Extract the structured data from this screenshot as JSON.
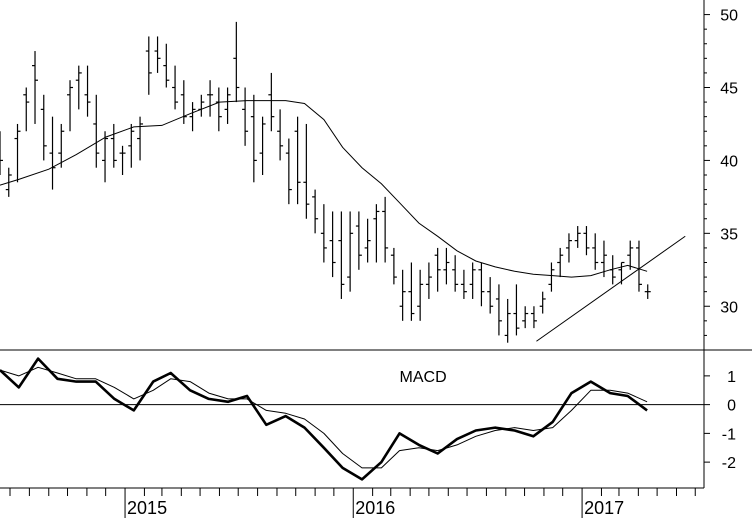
{
  "chart_data": [
    {
      "type": "ohlc",
      "panel": "price",
      "ylim": [
        27,
        51
      ],
      "y_ticks": [
        30,
        35,
        40,
        45,
        50
      ],
      "x_tick_labels": [
        "2015",
        "2016",
        "2017"
      ],
      "x_tick_dates": [
        "2015-01-01",
        "2016-01-01",
        "2017-01-01"
      ],
      "x_range": [
        "2014-06-15",
        "2017-07-15"
      ],
      "moving_average": {
        "x": [
          "2014-06-15",
          "2014-07-15",
          "2014-09-01",
          "2014-10-15",
          "2014-12-01",
          "2015-01-15",
          "2015-03-01",
          "2015-04-15",
          "2015-06-01",
          "2015-07-15",
          "2015-08-15",
          "2015-09-15",
          "2015-10-15",
          "2015-11-15",
          "2015-12-15",
          "2016-01-15",
          "2016-02-15",
          "2016-03-15",
          "2016-04-15",
          "2016-05-15",
          "2016-06-15",
          "2016-07-15",
          "2016-08-15",
          "2016-09-15",
          "2016-10-15",
          "2016-11-15",
          "2016-12-15",
          "2017-01-15",
          "2017-02-15",
          "2017-03-15",
          "2017-04-15"
        ],
        "values": [
          38.3,
          38.7,
          39.4,
          40.4,
          41.6,
          42.3,
          42.4,
          43.2,
          44.0,
          44.1,
          44.1,
          44.1,
          43.9,
          42.8,
          40.9,
          39.5,
          38.4,
          37.1,
          35.7,
          34.8,
          33.8,
          33.1,
          32.7,
          32.4,
          32.2,
          32.1,
          32.0,
          32.1,
          32.5,
          32.8,
          32.4
        ]
      },
      "trendline": {
        "x": [
          "2016-10-20",
          "2017-06-15"
        ],
        "values": [
          27.6,
          34.8
        ]
      },
      "bars": {
        "x": [
          "2014-06-15",
          "2014-06-29",
          "2014-07-13",
          "2014-07-27",
          "2014-08-10",
          "2014-08-24",
          "2014-09-07",
          "2014-09-21",
          "2014-10-05",
          "2014-10-19",
          "2014-11-02",
          "2014-11-16",
          "2014-11-30",
          "2014-12-14",
          "2014-12-28",
          "2015-01-11",
          "2015-01-25",
          "2015-02-08",
          "2015-02-22",
          "2015-03-08",
          "2015-03-22",
          "2015-04-05",
          "2015-04-19",
          "2015-05-03",
          "2015-05-17",
          "2015-05-31",
          "2015-06-14",
          "2015-06-28",
          "2015-07-12",
          "2015-07-26",
          "2015-08-09",
          "2015-08-23",
          "2015-09-06",
          "2015-09-20",
          "2015-10-04",
          "2015-10-18",
          "2015-11-01",
          "2015-11-15",
          "2015-11-29",
          "2015-12-13",
          "2015-12-27",
          "2016-01-10",
          "2016-01-24",
          "2016-02-07",
          "2016-02-21",
          "2016-03-06",
          "2016-03-20",
          "2016-04-03",
          "2016-04-17",
          "2016-05-01",
          "2016-05-15",
          "2016-05-29",
          "2016-06-12",
          "2016-06-26",
          "2016-07-10",
          "2016-07-24",
          "2016-08-07",
          "2016-08-21",
          "2016-09-04",
          "2016-09-18",
          "2016-10-02",
          "2016-10-16",
          "2016-10-30",
          "2016-11-13",
          "2016-11-27",
          "2016-12-11",
          "2016-12-25",
          "2017-01-08",
          "2017-01-22",
          "2017-02-05",
          "2017-02-19",
          "2017-03-05",
          "2017-03-19",
          "2017-04-02",
          "2017-04-16"
        ],
        "high": [
          42.0,
          39.5,
          42.5,
          45.0,
          47.5,
          44.5,
          43.0,
          42.5,
          45.5,
          46.5,
          46.5,
          44.5,
          42.0,
          42.5,
          41.0,
          42.5,
          43.0,
          48.5,
          48.5,
          48.0,
          46.5,
          45.5,
          44.0,
          44.5,
          45.5,
          45.0,
          45.0,
          49.5,
          45.0,
          44.5,
          43.0,
          46.0,
          43.5,
          41.5,
          43.0,
          42.5,
          38.0,
          37.0,
          36.5,
          36.5,
          36.5,
          36.5,
          36.0,
          37.0,
          37.5,
          34.0,
          32.5,
          33.0,
          32.5,
          33.0,
          34.0,
          34.0,
          33.5,
          32.5,
          33.0,
          33.0,
          32.0,
          31.5,
          30.5,
          31.5,
          30.0,
          30.0,
          31.0,
          33.0,
          34.0,
          35.0,
          35.5,
          35.5,
          35.0,
          34.5,
          33.5,
          33.0,
          34.5,
          34.5,
          31.5
        ],
        "low": [
          39.0,
          37.5,
          38.5,
          42.0,
          42.5,
          40.0,
          38.0,
          39.5,
          42.0,
          43.5,
          43.0,
          39.5,
          38.5,
          39.5,
          39.0,
          39.5,
          40.0,
          44.5,
          46.0,
          45.0,
          43.5,
          42.5,
          42.0,
          43.0,
          43.0,
          42.0,
          42.5,
          44.0,
          41.0,
          38.5,
          39.0,
          42.0,
          40.0,
          37.0,
          37.0,
          36.0,
          35.0,
          33.0,
          32.0,
          30.5,
          31.0,
          32.5,
          33.0,
          33.0,
          33.0,
          31.5,
          29.0,
          29.0,
          29.0,
          30.5,
          31.0,
          31.5,
          31.0,
          30.5,
          30.5,
          30.0,
          29.5,
          28.0,
          27.5,
          28.0,
          28.5,
          28.5,
          29.5,
          31.0,
          32.0,
          33.0,
          34.0,
          33.5,
          32.5,
          32.0,
          31.5,
          31.5,
          32.5,
          31.0,
          30.5
        ],
        "open": [
          41.0,
          38.0,
          41.5,
          44.5,
          46.5,
          43.5,
          40.5,
          40.5,
          44.5,
          45.5,
          44.5,
          42.5,
          40.0,
          41.5,
          40.5,
          41.0,
          41.5,
          47.5,
          47.5,
          46.5,
          45.0,
          44.5,
          43.0,
          43.5,
          44.5,
          44.0,
          43.5,
          47.0,
          43.5,
          43.0,
          40.5,
          44.5,
          42.0,
          40.5,
          42.0,
          38.5,
          37.5,
          35.0,
          34.5,
          34.5,
          32.0,
          35.5,
          34.0,
          36.0,
          36.5,
          33.5,
          30.0,
          31.0,
          30.0,
          31.5,
          33.5,
          32.5,
          32.5,
          31.5,
          31.5,
          32.5,
          31.0,
          30.5,
          28.0,
          29.5,
          29.0,
          29.5,
          30.0,
          31.5,
          33.0,
          34.0,
          34.5,
          35.0,
          34.0,
          33.0,
          32.5,
          32.5,
          33.5,
          34.0,
          31.0
        ],
        "close": [
          40.0,
          39.0,
          42.0,
          44.0,
          45.5,
          41.0,
          39.5,
          42.0,
          45.0,
          46.0,
          44.0,
          40.5,
          41.5,
          40.0,
          40.5,
          42.0,
          42.5,
          46.0,
          47.0,
          45.5,
          44.0,
          43.0,
          43.5,
          44.0,
          44.5,
          43.0,
          44.5,
          45.0,
          42.0,
          40.0,
          42.5,
          43.0,
          41.0,
          38.0,
          38.5,
          37.0,
          36.0,
          34.0,
          33.0,
          31.5,
          35.0,
          33.5,
          34.5,
          36.5,
          34.0,
          32.0,
          31.0,
          29.5,
          31.5,
          32.0,
          32.5,
          33.0,
          31.5,
          31.0,
          32.5,
          31.0,
          30.0,
          29.0,
          29.5,
          28.5,
          29.5,
          29.0,
          30.5,
          32.5,
          33.5,
          34.5,
          35.0,
          34.0,
          33.0,
          33.5,
          32.0,
          33.0,
          34.0,
          31.5,
          31.0
        ]
      }
    },
    {
      "type": "line",
      "panel": "indicator",
      "label": "MACD",
      "ylim": [
        -2.9,
        1.9
      ],
      "y_ticks": [
        1,
        0,
        -1,
        -2
      ],
      "zero_line": true,
      "series": [
        {
          "x": [
            "2014-06-15",
            "2014-07-15",
            "2014-08-15",
            "2014-09-15",
            "2014-10-15",
            "2014-11-15",
            "2014-12-15",
            "2015-01-15",
            "2015-02-15",
            "2015-03-15",
            "2015-04-15",
            "2015-05-15",
            "2015-06-15",
            "2015-07-15",
            "2015-08-15",
            "2015-09-15",
            "2015-10-15",
            "2015-11-15",
            "2015-12-15",
            "2016-01-15",
            "2016-02-15",
            "2016-03-15",
            "2016-04-15",
            "2016-05-15",
            "2016-06-15",
            "2016-07-15",
            "2016-08-15",
            "2016-09-15",
            "2016-10-15",
            "2016-11-15",
            "2016-12-15",
            "2017-01-15",
            "2017-02-15",
            "2017-03-15",
            "2017-04-15"
          ],
          "values": [
            1.2,
            0.6,
            1.6,
            0.9,
            0.8,
            0.8,
            0.2,
            -0.2,
            0.8,
            1.1,
            0.5,
            0.2,
            0.1,
            0.3,
            -0.7,
            -0.4,
            -0.8,
            -1.5,
            -2.2,
            -2.6,
            -2.0,
            -1.0,
            -1.4,
            -1.7,
            -1.2,
            -0.9,
            -0.8,
            -0.9,
            -1.1,
            -0.6,
            0.4,
            0.8,
            0.4,
            0.3,
            -0.2
          ]
        },
        {
          "x": [
            "2014-06-15",
            "2014-07-15",
            "2014-08-15",
            "2014-09-15",
            "2014-10-15",
            "2014-11-15",
            "2014-12-15",
            "2015-01-15",
            "2015-02-15",
            "2015-03-15",
            "2015-04-15",
            "2015-05-15",
            "2015-06-15",
            "2015-07-15",
            "2015-08-15",
            "2015-09-15",
            "2015-10-15",
            "2015-11-15",
            "2015-12-15",
            "2016-01-15",
            "2016-02-15",
            "2016-03-15",
            "2016-04-15",
            "2016-05-15",
            "2016-06-15",
            "2016-07-15",
            "2016-08-15",
            "2016-09-15",
            "2016-10-15",
            "2016-11-15",
            "2016-12-15",
            "2017-01-15",
            "2017-02-15",
            "2017-03-15",
            "2017-04-15"
          ],
          "values": [
            1.2,
            1.0,
            1.3,
            1.1,
            0.9,
            0.9,
            0.6,
            0.2,
            0.5,
            0.9,
            0.8,
            0.4,
            0.2,
            0.2,
            -0.2,
            -0.3,
            -0.5,
            -1.0,
            -1.7,
            -2.2,
            -2.2,
            -1.6,
            -1.5,
            -1.6,
            -1.4,
            -1.1,
            -0.9,
            -0.8,
            -0.9,
            -0.8,
            -0.2,
            0.5,
            0.5,
            0.4,
            0.1
          ]
        }
      ]
    }
  ]
}
